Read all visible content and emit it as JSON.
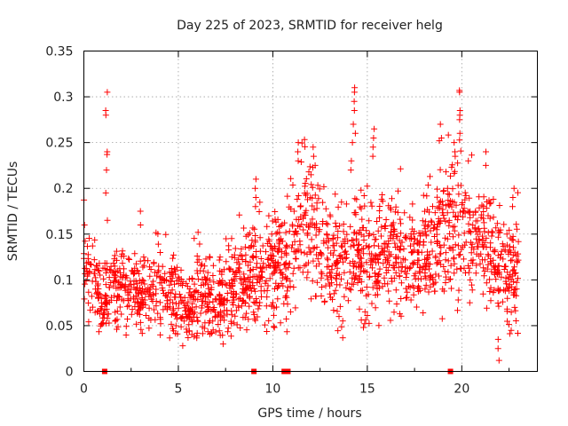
{
  "chart_data": {
    "type": "scatter",
    "title": "Day 225 of 2023, SRMTID for receiver helg",
    "xlabel": "GPS time / hours",
    "ylabel": "SRMTID / TECUs",
    "xlim": [
      0,
      24
    ],
    "ylim": [
      0,
      0.35
    ],
    "x_ticks": [
      0,
      5,
      10,
      15,
      20
    ],
    "x_tick_labels": [
      "0",
      "5",
      "10",
      "15",
      "20"
    ],
    "y_ticks": [
      0,
      0.05,
      0.1,
      0.15,
      0.2,
      0.25,
      0.3,
      0.35
    ],
    "y_tick_labels": [
      "0",
      "0.05",
      "0.1",
      "0.15",
      "0.2",
      "0.25",
      "0.3",
      "0.35"
    ],
    "grid": true,
    "marker": "plus",
    "color": "#ff0000",
    "data_span_hours": [
      0,
      23
    ],
    "baseline_markers_x": [
      1.1,
      9.0,
      10.6,
      10.8,
      19.4
    ],
    "series": [
      {
        "name": "SRMTID",
        "profile": {
          "x": [
            0.0,
            0.3,
            0.6,
            1.0,
            1.5,
            2.0,
            2.5,
            3.0,
            3.5,
            4.0,
            4.5,
            5.0,
            5.5,
            6.0,
            6.5,
            7.0,
            7.5,
            8.0,
            8.5,
            9.0,
            9.5,
            10.0,
            10.5,
            11.0,
            11.5,
            12.0,
            12.5,
            13.0,
            13.5,
            14.0,
            14.5,
            15.0,
            15.5,
            16.0,
            16.5,
            17.0,
            17.5,
            18.0,
            18.5,
            19.0,
            19.5,
            20.0,
            20.5,
            21.0,
            21.5,
            22.0,
            22.5,
            23.0
          ],
          "y_center": [
            0.125,
            0.115,
            0.09,
            0.08,
            0.09,
            0.09,
            0.085,
            0.088,
            0.09,
            0.095,
            0.088,
            0.075,
            0.065,
            0.09,
            0.08,
            0.075,
            0.085,
            0.095,
            0.1,
            0.11,
            0.115,
            0.12,
            0.115,
            0.14,
            0.165,
            0.175,
            0.14,
            0.12,
            0.115,
            0.13,
            0.125,
            0.125,
            0.12,
            0.135,
            0.13,
            0.135,
            0.125,
            0.13,
            0.14,
            0.16,
            0.175,
            0.16,
            0.155,
            0.15,
            0.13,
            0.115,
            0.1,
            0.12
          ],
          "y_spread": [
            0.035,
            0.03,
            0.03,
            0.025,
            0.025,
            0.028,
            0.025,
            0.025,
            0.025,
            0.028,
            0.028,
            0.025,
            0.022,
            0.03,
            0.028,
            0.025,
            0.025,
            0.028,
            0.03,
            0.035,
            0.035,
            0.035,
            0.035,
            0.04,
            0.045,
            0.045,
            0.04,
            0.035,
            0.035,
            0.04,
            0.04,
            0.04,
            0.035,
            0.04,
            0.035,
            0.04,
            0.035,
            0.035,
            0.04,
            0.045,
            0.045,
            0.045,
            0.04,
            0.04,
            0.035,
            0.035,
            0.035,
            0.04
          ]
        },
        "spikes": [
          {
            "x": 1.2,
            "y": [
              0.305,
              0.285,
              0.28,
              0.24,
              0.237,
              0.22,
              0.195,
              0.165
            ]
          },
          {
            "x": 3.0,
            "y": [
              0.175,
              0.16
            ]
          },
          {
            "x": 9.1,
            "y": [
              0.21,
              0.2,
              0.19,
              0.18
            ]
          },
          {
            "x": 11.3,
            "y": [
              0.25,
              0.24,
              0.23
            ]
          },
          {
            "x": 12.2,
            "y": [
              0.245,
              0.235,
              0.225
            ]
          },
          {
            "x": 14.3,
            "y": [
              0.31,
              0.305,
              0.295,
              0.285,
              0.27,
              0.26
            ]
          },
          {
            "x": 14.2,
            "y": [
              0.25,
              0.23,
              0.22
            ]
          },
          {
            "x": 15.3,
            "y": [
              0.265,
              0.255,
              0.245,
              0.235
            ]
          },
          {
            "x": 18.9,
            "y": [
              0.27,
              0.255
            ]
          },
          {
            "x": 19.9,
            "y": [
              0.307,
              0.305,
              0.285,
              0.28,
              0.275,
              0.26
            ]
          },
          {
            "x": 19.6,
            "y": [
              0.25,
              0.24,
              0.235
            ]
          },
          {
            "x": 21.2,
            "y": [
              0.24,
              0.225
            ]
          },
          {
            "x": 22.7,
            "y": [
              0.2,
              0.19,
              0.18
            ]
          },
          {
            "x": 21.9,
            "y": [
              0.012,
              0.025,
              0.035
            ]
          },
          {
            "x": 5.3,
            "y": [
              0.028
            ]
          },
          {
            "x": 7.3,
            "y": [
              0.03
            ]
          }
        ]
      }
    ]
  }
}
